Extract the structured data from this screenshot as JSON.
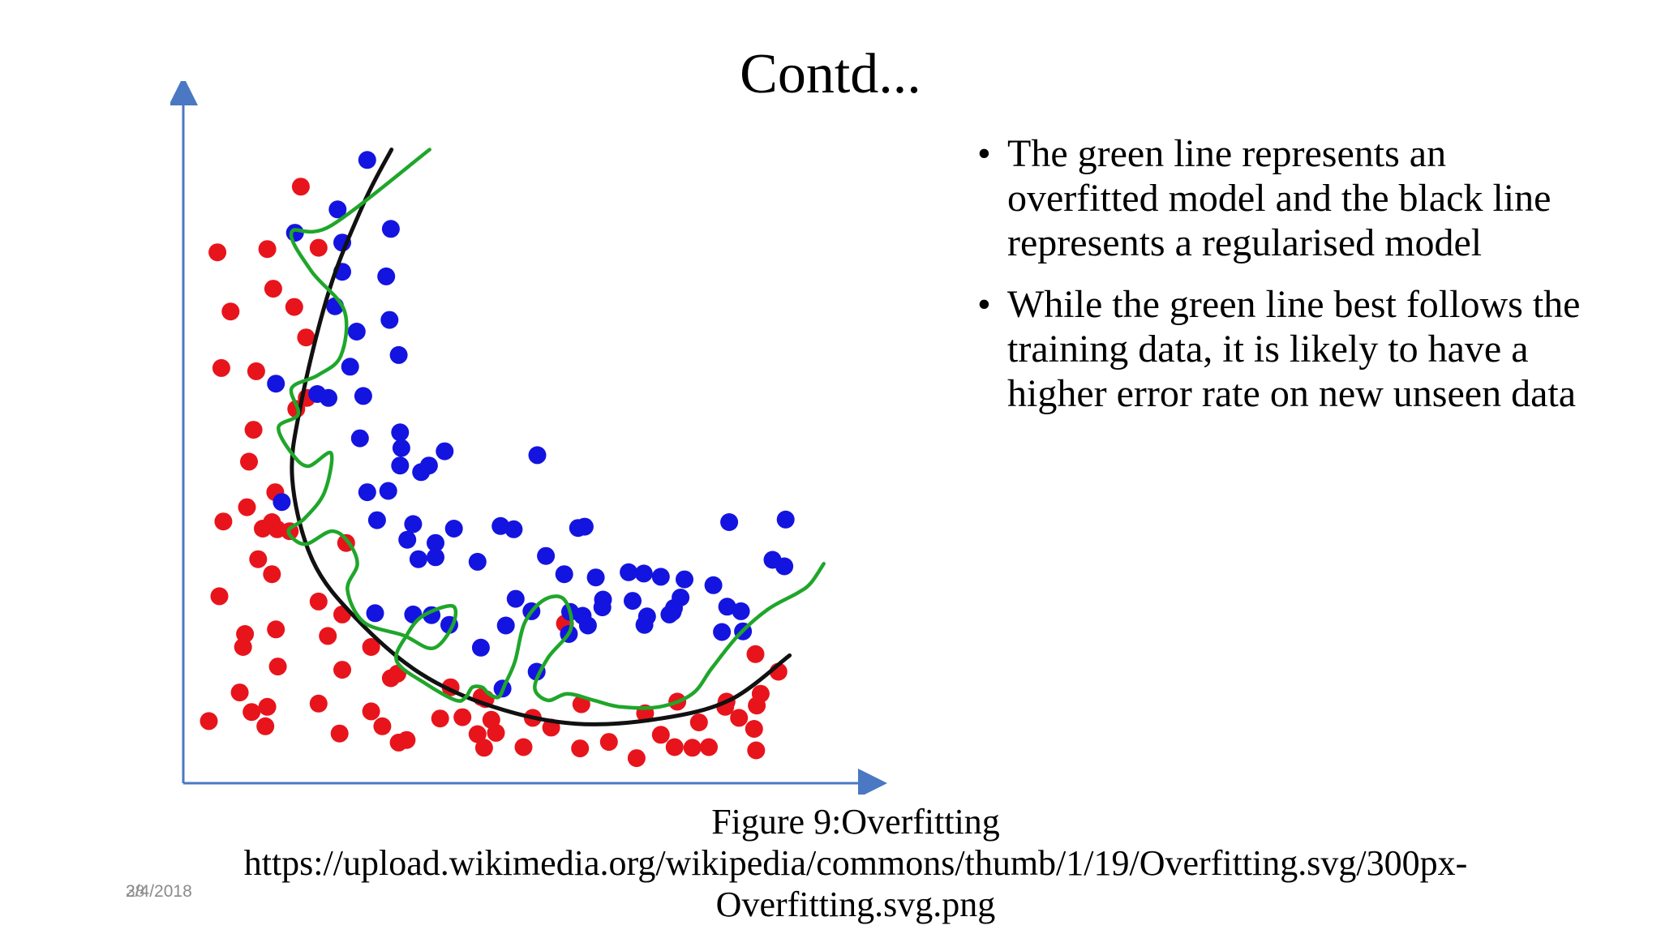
{
  "slide": {
    "title": "Contd...",
    "bullets": [
      "The green line represents an overfitted model and the black line represents a regularised model",
      "While the green line best follows the training data, it is likely to have a higher error rate on new unseen data"
    ],
    "caption_line1": "Figure 9:Overfitting",
    "caption_line2": "https://upload.wikimedia.org/wikipedia/commons/thumb/1/19/Overfitting.svg/300px-",
    "caption_line3": "Overfitting.svg.png",
    "footer_date": "2/4/2018",
    "slide_number": "38"
  },
  "colors": {
    "axis": "#4a78c2",
    "red_points": "#e8141c",
    "blue_points": "#1414e0",
    "overfit_line": "#1fa62a",
    "regularised_line": "#111111"
  },
  "chart_data": {
    "type": "scatter",
    "title": "",
    "xlabel": "",
    "ylabel": "",
    "xlim": [
      0,
      100
    ],
    "ylim": [
      0,
      100
    ],
    "grid": false,
    "series": [
      {
        "points": [
          [
            4.7,
            80.9
          ],
          [
            12.3,
            81.4
          ],
          [
            17.4,
            91.0
          ],
          [
            20.1,
            81.6
          ],
          [
            6.7,
            71.8
          ],
          [
            13.2,
            75.3
          ],
          [
            16.4,
            72.5
          ],
          [
            18.2,
            67.8
          ],
          [
            5.3,
            63.1
          ],
          [
            10.6,
            62.6
          ],
          [
            16.7,
            56.8
          ],
          [
            18.3,
            58.5
          ],
          [
            10.2,
            53.6
          ],
          [
            9.5,
            48.7
          ],
          [
            13.5,
            44.0
          ],
          [
            9.2,
            41.7
          ],
          [
            13.0,
            39.4
          ],
          [
            5.6,
            39.5
          ],
          [
            11.6,
            38.4
          ],
          [
            13.8,
            38.3
          ],
          [
            15.7,
            38.0
          ],
          [
            10.9,
            33.7
          ],
          [
            13.0,
            31.4
          ],
          [
            24.3,
            36.2
          ],
          [
            5.0,
            28.0
          ],
          [
            20.1,
            27.2
          ],
          [
            23.7,
            25.2
          ],
          [
            8.9,
            22.2
          ],
          [
            13.6,
            22.9
          ],
          [
            21.5,
            21.9
          ],
          [
            28.1,
            20.2
          ],
          [
            8.6,
            20.2
          ],
          [
            13.9,
            17.2
          ],
          [
            23.7,
            16.7
          ],
          [
            32.1,
            16.1
          ],
          [
            8.1,
            13.2
          ],
          [
            12.3,
            11.0
          ],
          [
            20.1,
            11.5
          ],
          [
            31.1,
            15.4
          ],
          [
            40.2,
            14.0
          ],
          [
            45.5,
            12.2
          ],
          [
            57.6,
            23.8
          ],
          [
            9.9,
            10.2
          ],
          [
            28.1,
            10.3
          ],
          [
            29.8,
            8.0
          ],
          [
            38.6,
            9.2
          ],
          [
            42.0,
            9.4
          ],
          [
            46.4,
            9.0
          ],
          [
            52.7,
            9.3
          ],
          [
            3.4,
            8.8
          ],
          [
            12.0,
            8.0
          ],
          [
            23.3,
            6.9
          ],
          [
            32.3,
            5.5
          ],
          [
            33.5,
            5.9
          ],
          [
            44.3,
            6.8
          ],
          [
            45.3,
            4.7
          ],
          [
            47.1,
            7.0
          ],
          [
            51.3,
            4.8
          ],
          [
            55.5,
            7.8
          ],
          [
            60.1,
            11.4
          ],
          [
            59.9,
            4.6
          ],
          [
            64.3,
            5.6
          ],
          [
            68.5,
            3.1
          ],
          [
            72.2,
            6.7
          ],
          [
            74.3,
            4.8
          ],
          [
            77.0,
            4.7
          ],
          [
            79.5,
            4.8
          ],
          [
            78.0,
            8.6
          ],
          [
            69.8,
            10.0
          ],
          [
            74.7,
            11.8
          ],
          [
            82.2,
            11.8
          ],
          [
            84.1,
            9.3
          ],
          [
            86.4,
            7.6
          ],
          [
            86.8,
            11.2
          ],
          [
            87.4,
            13.0
          ],
          [
            86.6,
            19.1
          ],
          [
            90.1,
            16.4
          ],
          [
            86.7,
            4.3
          ],
          [
            82.0,
            11.0
          ],
          [
            44.9,
            12.5
          ]
        ]
      },
      {
        "points": [
          [
            27.5,
            95.1
          ],
          [
            23.0,
            87.5
          ],
          [
            16.5,
            83.9
          ],
          [
            31.1,
            84.5
          ],
          [
            23.7,
            82.4
          ],
          [
            23.7,
            77.9
          ],
          [
            30.4,
            77.2
          ],
          [
            22.6,
            72.6
          ],
          [
            30.9,
            70.5
          ],
          [
            25.9,
            68.7
          ],
          [
            32.3,
            65.1
          ],
          [
            24.9,
            63.3
          ],
          [
            19.9,
            59.1
          ],
          [
            13.6,
            60.7
          ],
          [
            21.6,
            58.5
          ],
          [
            26.9,
            58.8
          ],
          [
            32.5,
            53.2
          ],
          [
            32.7,
            50.8
          ],
          [
            26.4,
            52.3
          ],
          [
            32.5,
            48.1
          ],
          [
            36.9,
            48.1
          ],
          [
            39.3,
            50.3
          ],
          [
            30.7,
            44.2
          ],
          [
            35.7,
            47.1
          ],
          [
            14.5,
            42.5
          ],
          [
            27.5,
            44.0
          ],
          [
            29.0,
            39.7
          ],
          [
            33.6,
            36.7
          ],
          [
            34.5,
            39.1
          ],
          [
            37.9,
            36.2
          ],
          [
            40.7,
            38.4
          ],
          [
            47.8,
            38.8
          ],
          [
            49.8,
            38.3
          ],
          [
            53.4,
            49.7
          ],
          [
            59.6,
            38.5
          ],
          [
            60.6,
            38.7
          ],
          [
            67.3,
            31.7
          ],
          [
            54.7,
            34.2
          ],
          [
            57.5,
            31.4
          ],
          [
            62.3,
            30.9
          ],
          [
            69.6,
            31.5
          ],
          [
            72.2,
            31.0
          ],
          [
            75.8,
            30.6
          ],
          [
            89.2,
            33.6
          ],
          [
            91.2,
            39.8
          ],
          [
            82.6,
            39.4
          ],
          [
            91.0,
            32.6
          ],
          [
            80.2,
            29.7
          ],
          [
            75.2,
            27.8
          ],
          [
            74.0,
            25.6
          ],
          [
            67.9,
            27.3
          ],
          [
            63.4,
            27.5
          ],
          [
            61.1,
            23.5
          ],
          [
            58.4,
            25.6
          ],
          [
            58.2,
            22.2
          ],
          [
            63.3,
            26.3
          ],
          [
            40.0,
            23.6
          ],
          [
            48.6,
            23.5
          ],
          [
            28.7,
            25.4
          ],
          [
            34.5,
            25.2
          ],
          [
            37.3,
            25.1
          ],
          [
            44.8,
            20.1
          ],
          [
            48.1,
            13.8
          ],
          [
            53.3,
            16.4
          ],
          [
            50.1,
            27.6
          ],
          [
            52.5,
            25.7
          ],
          [
            60.3,
            25.0
          ],
          [
            69.7,
            23.6
          ],
          [
            70.1,
            24.9
          ],
          [
            82.3,
            26.4
          ],
          [
            84.7,
            22.6
          ],
          [
            84.4,
            25.7
          ],
          [
            73.5,
            25.2
          ],
          [
            74.2,
            26.2
          ],
          [
            81.5,
            22.5
          ],
          [
            35.3,
            33.7
          ],
          [
            44.3,
            33.3
          ],
          [
            37.9,
            34.0
          ]
        ]
      }
    ],
    "curves": [
      {
        "points": [
          [
            31.2,
            96.7
          ],
          [
            27.0,
            88.5
          ],
          [
            21.7,
            75.0
          ],
          [
            17.4,
            57.5
          ],
          [
            16.1,
            46.0
          ],
          [
            19.2,
            33.5
          ],
          [
            25.8,
            24.6
          ],
          [
            35.5,
            16.2
          ],
          [
            46.7,
            11.0
          ],
          [
            59.2,
            8.4
          ],
          [
            72.2,
            9.2
          ],
          [
            82.8,
            12.1
          ],
          [
            91.8,
            18.9
          ]
        ]
      },
      {
        "points": [
          [
            37.0,
            96.7
          ],
          [
            22.0,
            85.0
          ],
          [
            16.0,
            84.0
          ],
          [
            19.0,
            78.0
          ],
          [
            24.0,
            72.0
          ],
          [
            23.5,
            65.0
          ],
          [
            20.0,
            62.0
          ],
          [
            16.0,
            60.0
          ],
          [
            17.0,
            56.0
          ],
          [
            14.0,
            54.0
          ],
          [
            16.0,
            50.0
          ],
          [
            18.5,
            48.0
          ],
          [
            22.0,
            50.0
          ],
          [
            21.0,
            44.0
          ],
          [
            18.0,
            40.0
          ],
          [
            15.5,
            38.0
          ],
          [
            18.0,
            36.0
          ],
          [
            22.0,
            38.0
          ],
          [
            24.5,
            36.5
          ],
          [
            26.0,
            33.0
          ],
          [
            24.5,
            29.0
          ],
          [
            27.0,
            24.0
          ],
          [
            33.0,
            22.0
          ],
          [
            37.5,
            20.0
          ],
          [
            40.5,
            23.5
          ],
          [
            40.5,
            26.5
          ],
          [
            36.0,
            25.0
          ],
          [
            33.5,
            22.0
          ],
          [
            32.0,
            18.0
          ],
          [
            36.5,
            14.5
          ],
          [
            41.0,
            12.0
          ],
          [
            42.5,
            12.5
          ],
          [
            43.5,
            14.0
          ],
          [
            45.0,
            14.0
          ],
          [
            46.0,
            13.0
          ],
          [
            47.5,
            12.5
          ],
          [
            48.5,
            14.5
          ],
          [
            50.0,
            18.0
          ],
          [
            51.5,
            24.0
          ],
          [
            54.5,
            27.5
          ],
          [
            57.5,
            27.5
          ],
          [
            58.5,
            23.0
          ],
          [
            55.0,
            18.5
          ],
          [
            53.0,
            14.0
          ],
          [
            55.0,
            12.0
          ],
          [
            58.0,
            13.0
          ],
          [
            62.0,
            12.0
          ],
          [
            66.0,
            11.0
          ],
          [
            72.0,
            11.0
          ],
          [
            77.0,
            13.0
          ],
          [
            80.0,
            17.0
          ],
          [
            84.0,
            22.0
          ],
          [
            88.5,
            26.0
          ],
          [
            93.0,
            28.5
          ],
          [
            95.0,
            30.0
          ],
          [
            97.0,
            33.0
          ]
        ]
      }
    ]
  }
}
